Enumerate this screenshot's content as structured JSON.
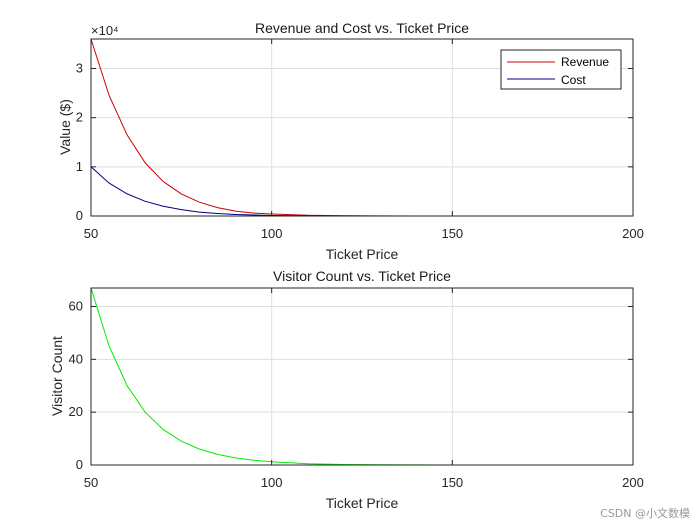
{
  "chart_data": [
    {
      "type": "line",
      "title": "Revenue and Cost vs. Ticket Price",
      "xlabel": "Ticket Price",
      "ylabel": "Value ($)",
      "exponent_label": "×10⁴",
      "xlim": [
        50,
        200
      ],
      "ylim": [
        0,
        3.6
      ],
      "xticks": [
        50,
        100,
        150,
        200
      ],
      "yticks": [
        0,
        1,
        2,
        3
      ],
      "grid": true,
      "legend": "top-right",
      "x": [
        50,
        55,
        60,
        65,
        70,
        75,
        80,
        85,
        90,
        95,
        100,
        110,
        120,
        130,
        140,
        150,
        160,
        170,
        180,
        190,
        200
      ],
      "series": [
        {
          "name": "Revenue",
          "color": "#cc0000",
          "values": [
            3.65,
            2.45,
            1.65,
            1.08,
            0.7,
            0.45,
            0.28,
            0.17,
            0.1,
            0.06,
            0.04,
            0.015,
            0.005,
            0.002,
            0.001,
            0,
            0,
            0,
            0,
            0,
            0
          ]
        },
        {
          "name": "Cost",
          "color": "#000080",
          "values": [
            1.0,
            0.67,
            0.45,
            0.3,
            0.2,
            0.13,
            0.08,
            0.05,
            0.03,
            0.02,
            0.01,
            0.004,
            0.002,
            0.001,
            0,
            0,
            0,
            0,
            0,
            0,
            0
          ]
        }
      ]
    },
    {
      "type": "line",
      "title": "Visitor Count vs. Ticket Price",
      "xlabel": "Ticket Price",
      "ylabel": "Visitor Count",
      "xlim": [
        50,
        200
      ],
      "ylim": [
        0,
        67
      ],
      "xticks": [
        50,
        100,
        150,
        200
      ],
      "yticks": [
        0,
        20,
        40,
        60
      ],
      "grid": true,
      "x": [
        50,
        55,
        60,
        65,
        70,
        75,
        80,
        85,
        90,
        95,
        100,
        110,
        120,
        130,
        140,
        150,
        160,
        170,
        180,
        190,
        200
      ],
      "series": [
        {
          "color": "#00ee00",
          "values": [
            67,
            45,
            30,
            20,
            13.4,
            9,
            6,
            4,
            2.7,
            1.8,
            1.2,
            0.5,
            0.2,
            0.1,
            0.05,
            0,
            0,
            0,
            0,
            0,
            0
          ]
        }
      ]
    }
  ],
  "watermark": "CSDN @小文数模"
}
